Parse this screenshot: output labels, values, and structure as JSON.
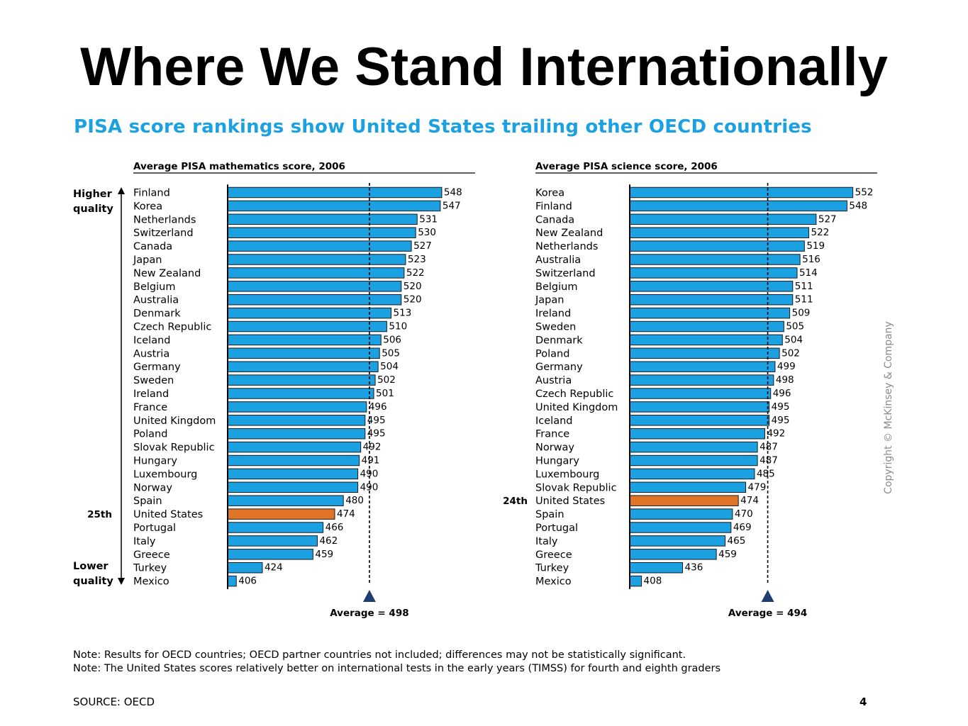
{
  "slide": {
    "title": "Where We Stand Internationally",
    "heading": "PISA score rankings show United States trailing other OECD countries",
    "notes": [
      "Note: Results for OECD countries; OECD partner countries not included; differences may not be statistically significant.",
      "Note: The United States scores relatively better on international tests in the early years (TIMSS) for fourth and eighth graders"
    ],
    "source": "SOURCE: OECD",
    "page_number": "4",
    "copyright": "Copyright © McKinsey & Company",
    "quality_labels": {
      "higher": [
        "Higher",
        "quality"
      ],
      "lower": [
        "Lower",
        "quality"
      ]
    },
    "colors": {
      "bar": "#1ba1e2",
      "highlight": "#e07426",
      "heading": "#1ba1e2",
      "marker": "#1f3d6e"
    }
  },
  "chart_data": [
    {
      "type": "bar",
      "orientation": "horizontal",
      "title": "Average PISA mathematics score, 2006",
      "categories": [
        "Finland",
        "Korea",
        "Netherlands",
        "Switzerland",
        "Canada",
        "Japan",
        "New Zealand",
        "Belgium",
        "Australia",
        "Denmark",
        "Czech Republic",
        "Iceland",
        "Austria",
        "Germany",
        "Sweden",
        "Ireland",
        "France",
        "United Kingdom",
        "Poland",
        "Slovak Republic",
        "Hungary",
        "Luxembourg",
        "Norway",
        "Spain",
        "United States",
        "Portugal",
        "Italy",
        "Greece",
        "Turkey",
        "Mexico"
      ],
      "values": [
        548,
        547,
        531,
        530,
        527,
        523,
        522,
        520,
        520,
        513,
        510,
        506,
        505,
        504,
        502,
        501,
        496,
        495,
        495,
        492,
        491,
        490,
        490,
        480,
        474,
        466,
        462,
        459,
        424,
        406
      ],
      "highlight": "United States",
      "rank_label": "25th",
      "average": 498,
      "average_label": "Average = 498"
    },
    {
      "type": "bar",
      "orientation": "horizontal",
      "title": "Average PISA science score, 2006",
      "categories": [
        "Korea",
        "Finland",
        "Canada",
        "New Zealand",
        "Netherlands",
        "Australia",
        "Switzerland",
        "Belgium",
        "Japan",
        "Ireland",
        "Sweden",
        "Denmark",
        "Poland",
        "Germany",
        "Austria",
        "Czech Republic",
        "United Kingdom",
        "Iceland",
        "France",
        "Norway",
        "Hungary",
        "Luxembourg",
        "Slovak Republic",
        "United States",
        "Spain",
        "Portugal",
        "Italy",
        "Greece",
        "Turkey",
        "Mexico"
      ],
      "values": [
        552,
        548,
        527,
        522,
        519,
        516,
        514,
        511,
        511,
        509,
        505,
        504,
        502,
        499,
        498,
        496,
        495,
        495,
        492,
        487,
        487,
        485,
        479,
        474,
        470,
        469,
        465,
        459,
        436,
        408
      ],
      "highlight": "United States",
      "rank_label": "24th",
      "average": 494,
      "average_label": "Average = 494"
    }
  ]
}
